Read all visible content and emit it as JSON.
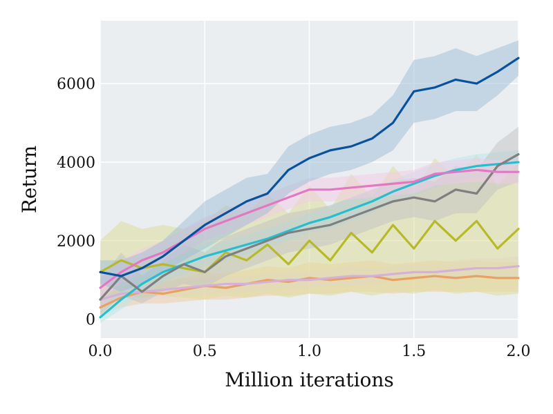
{
  "chart_data": {
    "type": "line",
    "title": "",
    "xlabel": "Million iterations",
    "ylabel": "Return",
    "xlim": [
      0.0,
      2.0
    ],
    "ylim": [
      -480,
      7600
    ],
    "xticks": [
      0.0,
      0.5,
      1.0,
      1.5,
      2.0
    ],
    "xtick_labels": [
      "0.0",
      "0.5",
      "1.0",
      "1.5",
      "2.0"
    ],
    "yticks": [
      0,
      2000,
      4000,
      6000
    ],
    "ytick_labels": [
      "0",
      "2000",
      "4000",
      "6000"
    ],
    "grid": true,
    "background_color": "#eaeef0",
    "legend": "none",
    "series": [
      {
        "color": "#e9a063",
        "band_color": "#f2c9a3",
        "x": [
          0.0,
          0.1,
          0.2,
          0.3,
          0.4,
          0.5,
          0.6,
          0.7,
          0.8,
          0.9,
          1.0,
          1.1,
          1.2,
          1.3,
          1.4,
          1.5,
          1.6,
          1.7,
          1.8,
          1.9,
          2.0
        ],
        "y": [
          300,
          550,
          700,
          650,
          750,
          850,
          800,
          900,
          1000,
          950,
          1050,
          1000,
          1050,
          1100,
          1000,
          1050,
          1100,
          1050,
          1100,
          1050,
          1050
        ],
        "lower": [
          100,
          300,
          400,
          400,
          450,
          500,
          500,
          550,
          600,
          600,
          650,
          650,
          700,
          700,
          650,
          700,
          700,
          700,
          700,
          700,
          700
        ],
        "upper": [
          500,
          800,
          1000,
          950,
          1050,
          1200,
          1150,
          1250,
          1350,
          1300,
          1450,
          1400,
          1450,
          1500,
          1400,
          1450,
          1500,
          1450,
          1500,
          1450,
          1450
        ]
      },
      {
        "color": "#d6b0d8",
        "band_color": "#e8d3ea",
        "x": [
          0.0,
          0.1,
          0.2,
          0.3,
          0.4,
          0.5,
          0.6,
          0.7,
          0.8,
          0.9,
          1.0,
          1.1,
          1.2,
          1.3,
          1.4,
          1.5,
          1.6,
          1.7,
          1.8,
          1.9,
          2.0
        ],
        "y": [
          500,
          650,
          700,
          750,
          800,
          850,
          900,
          900,
          950,
          1000,
          1000,
          1050,
          1100,
          1100,
          1150,
          1200,
          1200,
          1250,
          1300,
          1300,
          1350
        ],
        "lower": [
          350,
          450,
          500,
          550,
          600,
          650,
          700,
          700,
          750,
          800,
          800,
          850,
          850,
          900,
          950,
          1000,
          1000,
          1000,
          1050,
          1050,
          1100
        ],
        "upper": [
          650,
          850,
          900,
          950,
          1000,
          1050,
          1100,
          1100,
          1150,
          1200,
          1200,
          1250,
          1350,
          1300,
          1350,
          1400,
          1400,
          1500,
          1550,
          1550,
          1600
        ]
      },
      {
        "color": "#b7b928",
        "band_color": "#dcdc94",
        "x": [
          0.0,
          0.1,
          0.2,
          0.3,
          0.4,
          0.5,
          0.6,
          0.7,
          0.8,
          0.9,
          1.0,
          1.1,
          1.2,
          1.3,
          1.4,
          1.5,
          1.6,
          1.7,
          1.8,
          1.9,
          2.0
        ],
        "y": [
          1200,
          1500,
          1300,
          1400,
          1300,
          1200,
          1700,
          1500,
          1900,
          1400,
          2000,
          1500,
          2200,
          1700,
          2400,
          1800,
          2500,
          2000,
          2500,
          1800,
          2300
        ],
        "lower": [
          500,
          600,
          550,
          600,
          550,
          500,
          600,
          550,
          650,
          550,
          650,
          600,
          700,
          600,
          700,
          650,
          750,
          650,
          700,
          600,
          650
        ],
        "upper": [
          2000,
          2500,
          2300,
          2400,
          2300,
          2500,
          2900,
          2700,
          3200,
          2700,
          3400,
          2800,
          3700,
          3100,
          3900,
          3300,
          4100,
          3600,
          4200,
          3400,
          4000
        ]
      },
      {
        "color": "#23becf",
        "band_color": "#b5e7ec",
        "x": [
          0.0,
          0.1,
          0.2,
          0.3,
          0.4,
          0.5,
          0.6,
          0.7,
          0.8,
          0.9,
          1.0,
          1.1,
          1.2,
          1.3,
          1.4,
          1.5,
          1.6,
          1.7,
          1.8,
          1.9,
          2.0
        ],
        "y": [
          50,
          500,
          900,
          1200,
          1400,
          1600,
          1750,
          1900,
          2050,
          2250,
          2450,
          2600,
          2800,
          3000,
          3250,
          3450,
          3650,
          3800,
          3900,
          3950,
          4000
        ],
        "lower": [
          -100,
          250,
          650,
          950,
          1150,
          1350,
          1500,
          1650,
          1800,
          2000,
          2200,
          2300,
          2500,
          2700,
          2950,
          3150,
          3350,
          3500,
          3600,
          3650,
          3700
        ],
        "upper": [
          250,
          750,
          1150,
          1450,
          1650,
          1850,
          2000,
          2150,
          2300,
          2500,
          2700,
          2900,
          3100,
          3300,
          3550,
          3750,
          3950,
          4100,
          4200,
          4250,
          4300
        ]
      },
      {
        "color": "#7f7f7f",
        "band_color": "#c2c2c2",
        "x": [
          0.0,
          0.1,
          0.2,
          0.3,
          0.4,
          0.5,
          0.6,
          0.7,
          0.8,
          0.9,
          1.0,
          1.1,
          1.2,
          1.3,
          1.4,
          1.5,
          1.6,
          1.7,
          1.8,
          1.9,
          2.0
        ],
        "y": [
          500,
          1100,
          700,
          1100,
          1400,
          1200,
          1600,
          1800,
          2000,
          2200,
          2300,
          2400,
          2600,
          2800,
          3000,
          3100,
          3000,
          3300,
          3200,
          3900,
          4200
        ],
        "lower": [
          100,
          600,
          400,
          700,
          900,
          800,
          1100,
          1300,
          1500,
          1700,
          1800,
          1900,
          2100,
          2300,
          2500,
          2600,
          2500,
          2700,
          2700,
          3300,
          3500
        ],
        "upper": [
          1000,
          1700,
          1100,
          1500,
          1900,
          1700,
          2100,
          2300,
          2500,
          2700,
          2800,
          2900,
          3100,
          3300,
          3500,
          3600,
          3500,
          3900,
          3800,
          4500,
          4900
        ]
      },
      {
        "color": "#e377c2",
        "band_color": "#f3c9e6",
        "x": [
          0.0,
          0.1,
          0.2,
          0.3,
          0.4,
          0.5,
          0.6,
          0.7,
          0.8,
          0.9,
          1.0,
          1.1,
          1.2,
          1.3,
          1.4,
          1.5,
          1.6,
          1.7,
          1.8,
          1.9,
          2.0
        ],
        "y": [
          800,
          1200,
          1500,
          1700,
          2000,
          2300,
          2500,
          2700,
          2900,
          3100,
          3300,
          3300,
          3350,
          3400,
          3450,
          3500,
          3700,
          3750,
          3800,
          3750,
          3750
        ],
        "lower": [
          500,
          900,
          1200,
          1400,
          1700,
          2000,
          2200,
          2400,
          2600,
          2800,
          3000,
          3000,
          3050,
          3100,
          3150,
          3200,
          3400,
          3450,
          3500,
          3450,
          3450
        ],
        "upper": [
          1100,
          1500,
          1800,
          2000,
          2300,
          2600,
          2800,
          3000,
          3200,
          3400,
          3600,
          3600,
          3650,
          3700,
          3750,
          3800,
          4000,
          4050,
          4100,
          4050,
          4050
        ]
      },
      {
        "color": "#08519c",
        "band_color": "#9ebcd6",
        "x": [
          0.0,
          0.1,
          0.2,
          0.3,
          0.4,
          0.5,
          0.6,
          0.7,
          0.8,
          0.9,
          1.0,
          1.1,
          1.2,
          1.3,
          1.4,
          1.5,
          1.6,
          1.7,
          1.8,
          1.9,
          2.0
        ],
        "y": [
          1200,
          1100,
          1300,
          1600,
          2000,
          2400,
          2700,
          3000,
          3200,
          3800,
          4100,
          4300,
          4400,
          4600,
          5000,
          5800,
          5900,
          6100,
          6000,
          6300,
          6650
        ],
        "lower": [
          900,
          700,
          900,
          1200,
          1500,
          1800,
          2100,
          2400,
          2700,
          3200,
          3500,
          3700,
          3800,
          4000,
          4300,
          5000,
          5100,
          5300,
          5300,
          5700,
          6200
        ],
        "upper": [
          1500,
          1500,
          1700,
          2000,
          2500,
          3000,
          3300,
          3600,
          3700,
          4400,
          4700,
          4900,
          5000,
          5200,
          5700,
          6600,
          6700,
          6900,
          6700,
          6900,
          7100
        ]
      }
    ]
  }
}
